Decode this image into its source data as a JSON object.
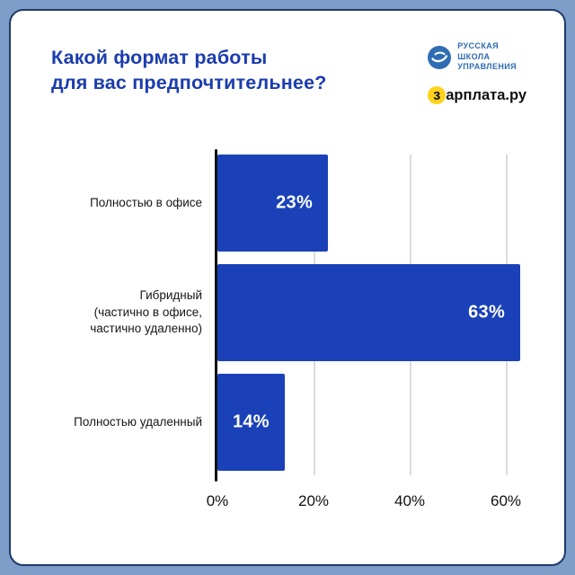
{
  "header": {
    "title": "Какой формат работы\nдля вас предпочтительнее?",
    "rsu_logo_text": "РУССКАЯ\nШКОЛА\nУПРАВЛЕНИЯ",
    "zarplata_first": "з",
    "zarplata_rest": "арплата.ру"
  },
  "colors": {
    "background": "#7e9ec9",
    "card_border": "#1e3a68",
    "title_blue": "#1b3cae",
    "rsu_blue": "#2f6cb3",
    "zarplata_yellow": "#ffd21c",
    "bar_blue": "#1a41b8",
    "gridline_gray": "#dcdcdc"
  },
  "chart_data": {
    "type": "bar",
    "orientation": "horizontal",
    "title": "Какой формат работы для вас предпочтительнее?",
    "categories": [
      "Полностью в офисе",
      "Гибридный\n(частично в офисе,\nчастично удаленно)",
      "Полностью удаленный"
    ],
    "values": [
      23,
      63,
      14
    ],
    "value_labels": [
      "23%",
      "63%",
      "14%"
    ],
    "unit": "%",
    "tick_values": [
      0,
      20,
      40,
      60
    ],
    "tick_labels": [
      "0%",
      "20%",
      "40%",
      "60%"
    ],
    "xlim": [
      0,
      70
    ],
    "bar_color": "#1a41b8",
    "grid": true,
    "legend": false
  }
}
